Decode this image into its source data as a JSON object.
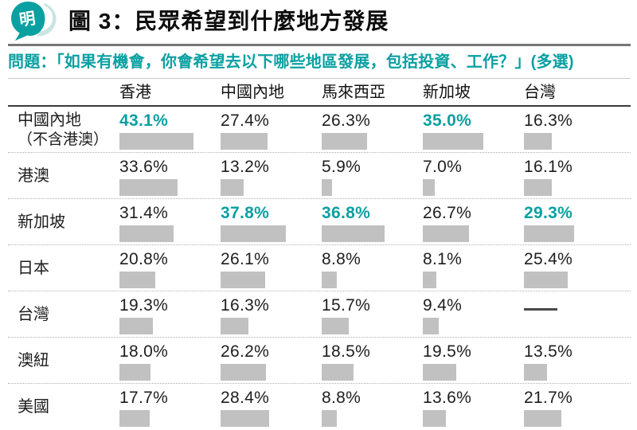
{
  "logo": {
    "char": "明"
  },
  "title": "圖 3：民眾希望到什麼地方發展",
  "question": "問題：「如果有機會，你會希望去以下哪些地區發展，包括投資、工作？」(多選)",
  "colors": {
    "teal": "#0aa0a2",
    "teal_light": "#c9e5e2",
    "bar_gray": "#c1c1c1"
  },
  "chart_data": {
    "type": "table",
    "title": "圖 3：民眾希望到什麼地方發展",
    "question": "問題：「如果有機會，你會希望去以下哪些地區發展，包括投資、工作？」(多選)",
    "columns": [
      "香港",
      "中國內地",
      "馬來西亞",
      "新加坡",
      "台灣"
    ],
    "rows": [
      {
        "label": "中國內地",
        "label_note": "（不含港澳）",
        "values": [
          43.1,
          27.4,
          26.3,
          35.0,
          16.3
        ],
        "highlight": [
          true,
          false,
          false,
          true,
          false
        ]
      },
      {
        "label": "港澳",
        "values": [
          33.6,
          13.2,
          5.9,
          7.0,
          16.1
        ],
        "highlight": [
          false,
          false,
          false,
          false,
          false
        ]
      },
      {
        "label": "新加坡",
        "values": [
          31.4,
          37.8,
          36.8,
          26.7,
          29.3
        ],
        "highlight": [
          false,
          true,
          true,
          false,
          true
        ]
      },
      {
        "label": "日本",
        "values": [
          20.8,
          26.1,
          8.8,
          8.1,
          25.4
        ],
        "highlight": [
          false,
          false,
          false,
          false,
          false
        ]
      },
      {
        "label": "台灣",
        "values": [
          19.3,
          16.3,
          15.7,
          9.4,
          null
        ],
        "highlight": [
          false,
          false,
          false,
          false,
          false
        ]
      },
      {
        "label": "澳紐",
        "values": [
          18.0,
          26.2,
          18.5,
          19.5,
          13.5
        ],
        "highlight": [
          false,
          false,
          false,
          false,
          false
        ]
      },
      {
        "label": "美國",
        "values": [
          17.7,
          28.4,
          8.8,
          13.6,
          21.7
        ],
        "highlight": [
          false,
          false,
          false,
          false,
          false
        ]
      }
    ],
    "value_suffix": "%",
    "missing_display": "——",
    "bar_color": "#c1c1c1",
    "highlight_color": "#0aa0a2",
    "value_range": [
      0,
      50
    ]
  }
}
